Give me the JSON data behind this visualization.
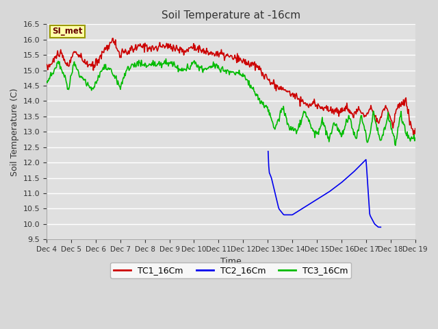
{
  "title": "Soil Temperature at -16cm",
  "xlabel": "Time",
  "ylabel": "Soil Temperature (C)",
  "ylim": [
    9.5,
    16.5
  ],
  "legend_label": "SI_met",
  "fig_bg_color": "#d8d8d8",
  "plot_bg_color": "#e0e0e0",
  "grid_color": "#ffffff",
  "series": {
    "TC1_16Cm": {
      "color": "#cc0000",
      "lw": 1.2
    },
    "TC2_16Cm": {
      "color": "#0000ee",
      "lw": 1.2
    },
    "TC3_16Cm": {
      "color": "#00bb00",
      "lw": 1.2
    }
  },
  "x_tick_labels": [
    "Dec 4",
    "Dec 5",
    "Dec 6",
    "Dec 7",
    "Dec 8",
    "Dec 9",
    "Dec 10",
    "Dec 11",
    "Dec 12",
    "Dec 13",
    "Dec 14",
    "Dec 15",
    "Dec 16",
    "Dec 17",
    "Dec 18",
    "Dec 19"
  ],
  "yticks": [
    9.5,
    10.0,
    10.5,
    11.0,
    11.5,
    12.0,
    12.5,
    13.0,
    13.5,
    14.0,
    14.5,
    15.0,
    15.5,
    16.0,
    16.5
  ]
}
